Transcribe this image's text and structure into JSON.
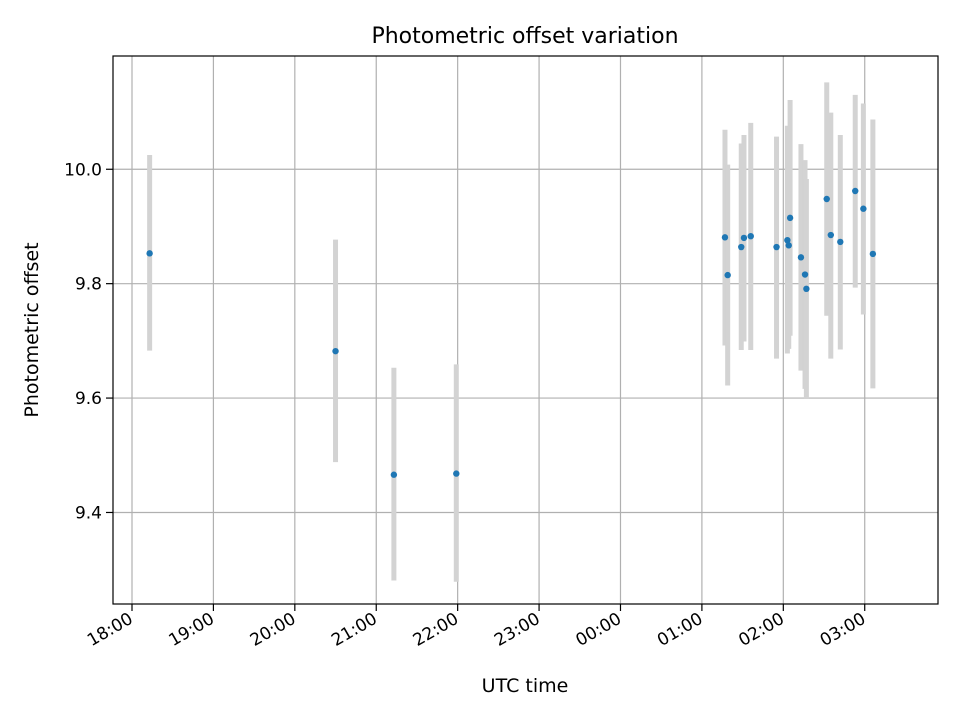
{
  "chart_data": {
    "type": "scatter",
    "title": "Photometric offset variation",
    "xlabel": "UTC time",
    "ylabel": "Photometric offset",
    "x_unit": "UTC time (HH:MM), spanning midnight",
    "xlim": [
      "17:46",
      "03:54"
    ],
    "ylim": [
      9.24,
      10.198
    ],
    "x_ticks": [
      "18:00",
      "19:00",
      "20:00",
      "21:00",
      "22:00",
      "23:00",
      "00:00",
      "01:00",
      "02:00",
      "03:00"
    ],
    "y_ticks": [
      9.4,
      9.6,
      9.8,
      10.0
    ],
    "y_tick_labels": [
      "9.4",
      "9.6",
      "9.8",
      "10.0"
    ],
    "grid": true,
    "marker_color": "#1f77b4",
    "errorbar_color": "#d3d3d3",
    "series": [
      {
        "points": [
          {
            "x": "18:13",
            "y": 9.853,
            "ylo": 9.683,
            "yhi": 10.025
          },
          {
            "x": "20:30",
            "y": 9.682,
            "ylo": 9.488,
            "yhi": 9.877
          },
          {
            "x": "21:13",
            "y": 9.466,
            "ylo": 9.281,
            "yhi": 9.653
          },
          {
            "x": "21:59",
            "y": 9.468,
            "ylo": 9.279,
            "yhi": 9.659
          },
          {
            "x": "01:17",
            "y": 9.881,
            "ylo": 9.692,
            "yhi": 10.069
          },
          {
            "x": "01:19",
            "y": 9.815,
            "ylo": 9.622,
            "yhi": 10.008
          },
          {
            "x": "01:29",
            "y": 9.864,
            "ylo": 9.684,
            "yhi": 10.045
          },
          {
            "x": "01:31",
            "y": 9.88,
            "ylo": 9.699,
            "yhi": 10.06
          },
          {
            "x": "01:36",
            "y": 9.883,
            "ylo": 9.684,
            "yhi": 10.081
          },
          {
            "x": "01:55",
            "y": 9.864,
            "ylo": 9.669,
            "yhi": 10.057
          },
          {
            "x": "02:03",
            "y": 9.876,
            "ylo": 9.678,
            "yhi": 10.076
          },
          {
            "x": "02:04",
            "y": 9.867,
            "ylo": 9.686,
            "yhi": 10.047
          },
          {
            "x": "02:05",
            "y": 9.915,
            "ylo": 9.709,
            "yhi": 10.121
          },
          {
            "x": "02:13",
            "y": 9.846,
            "ylo": 9.648,
            "yhi": 10.044
          },
          {
            "x": "02:16",
            "y": 9.816,
            "ylo": 9.616,
            "yhi": 10.016
          },
          {
            "x": "02:17",
            "y": 9.791,
            "ylo": 9.6,
            "yhi": 9.983
          },
          {
            "x": "02:32",
            "y": 9.948,
            "ylo": 9.744,
            "yhi": 10.152
          },
          {
            "x": "02:35",
            "y": 9.885,
            "ylo": 9.669,
            "yhi": 10.099
          },
          {
            "x": "02:42",
            "y": 9.873,
            "ylo": 9.685,
            "yhi": 10.06
          },
          {
            "x": "02:53",
            "y": 9.962,
            "ylo": 9.793,
            "yhi": 10.13
          },
          {
            "x": "02:59",
            "y": 9.931,
            "ylo": 9.746,
            "yhi": 10.115
          },
          {
            "x": "03:06",
            "y": 9.852,
            "ylo": 9.617,
            "yhi": 10.087
          }
        ]
      }
    ]
  }
}
